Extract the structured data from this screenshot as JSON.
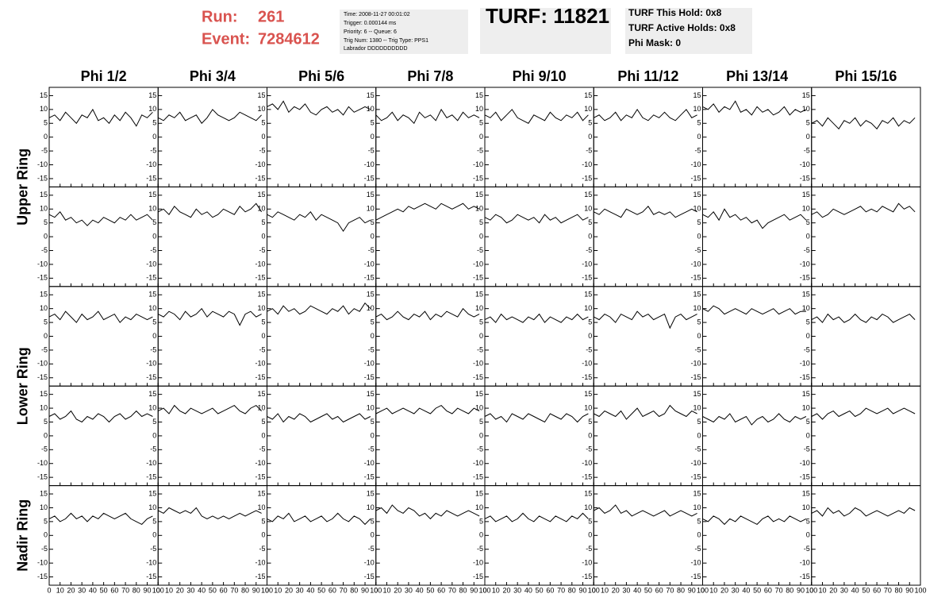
{
  "header": {
    "run_label": "Run:",
    "run": "261",
    "event_label": "Event:",
    "event": "7284612",
    "info": [
      "Time: 2008-11-27 00:01:02",
      "Trigger: 0.000144 ms",
      "Priority: 6 -- Queue: 6",
      "Trig Num: 1380 -- Trig Type: PPS1",
      "Labrador DDDDDDDDDD"
    ],
    "turf": "TURF: 11821",
    "turf_info": [
      "TURF This Hold: 0x8",
      "TURF Active Holds: 0x8",
      "Phi Mask: 0"
    ]
  },
  "chart_data": {
    "type": "line",
    "color": "#000000",
    "columns": [
      "Phi 1/2",
      "Phi 3/4",
      "Phi 5/6",
      "Phi 7/8",
      "Phi 9/10",
      "Phi 11/12",
      "Phi 13/14",
      "Phi 15/16"
    ],
    "row_groups": [
      "Upper Ring",
      "Lower Ring",
      "Nadir Ring"
    ],
    "xlim": [
      0,
      100
    ],
    "xticks": [
      0,
      10,
      20,
      30,
      40,
      50,
      60,
      70,
      80,
      90,
      100
    ],
    "ylim": [
      -18,
      18
    ],
    "yticks": [
      -15,
      -10,
      -5,
      0,
      5,
      10,
      15
    ],
    "x": [
      0,
      5,
      10,
      15,
      20,
      25,
      30,
      35,
      40,
      45,
      50,
      55,
      60,
      65,
      70,
      75,
      80,
      85,
      90,
      95
    ],
    "panels": [
      [
        [
          7,
          8,
          6,
          9,
          7,
          5,
          8,
          7,
          10,
          6,
          7,
          5,
          8,
          6,
          9,
          7,
          4,
          8,
          7,
          9
        ],
        [
          7,
          6,
          8,
          7,
          9,
          6,
          7,
          8,
          5,
          7,
          10,
          8,
          7,
          6,
          7,
          9,
          8,
          7,
          6,
          8
        ],
        [
          11,
          12,
          10,
          13,
          9,
          11,
          10,
          12,
          9,
          8,
          10,
          11,
          9,
          10,
          8,
          11,
          9,
          10,
          11,
          10
        ],
        [
          8,
          6,
          7,
          9,
          6,
          8,
          7,
          5,
          9,
          7,
          8,
          6,
          10,
          7,
          8,
          6,
          9,
          7,
          8,
          7
        ],
        [
          8,
          7,
          9,
          6,
          8,
          10,
          7,
          6,
          5,
          8,
          7,
          6,
          9,
          7,
          6,
          8,
          7,
          9,
          6,
          8
        ],
        [
          7,
          8,
          6,
          7,
          9,
          6,
          8,
          7,
          10,
          7,
          6,
          8,
          7,
          9,
          7,
          6,
          8,
          10,
          7,
          8
        ],
        [
          11,
          10,
          12,
          9,
          11,
          10,
          13,
          9,
          10,
          8,
          11,
          9,
          10,
          8,
          9,
          11,
          8,
          10,
          9,
          10
        ],
        [
          5,
          6,
          4,
          7,
          5,
          3,
          6,
          5,
          7,
          4,
          6,
          5,
          3,
          6,
          5,
          7,
          4,
          6,
          5,
          7
        ]
      ],
      [
        [
          8,
          7,
          9,
          6,
          7,
          5,
          6,
          4,
          6,
          5,
          7,
          6,
          5,
          7,
          6,
          8,
          6,
          7,
          8,
          6
        ],
        [
          9,
          10,
          8,
          11,
          9,
          8,
          7,
          10,
          8,
          9,
          7,
          8,
          10,
          9,
          8,
          11,
          9,
          10,
          12,
          9
        ],
        [
          8,
          7,
          9,
          8,
          7,
          6,
          8,
          7,
          9,
          6,
          8,
          7,
          6,
          5,
          2,
          5,
          6,
          7,
          5,
          6
        ],
        [
          6,
          7,
          8,
          9,
          10,
          9,
          11,
          10,
          11,
          12,
          11,
          10,
          12,
          11,
          10,
          11,
          12,
          10,
          11,
          10
        ],
        [
          7,
          6,
          8,
          7,
          5,
          6,
          8,
          7,
          6,
          7,
          5,
          8,
          6,
          7,
          5,
          6,
          7,
          8,
          6,
          7
        ],
        [
          9,
          8,
          10,
          9,
          8,
          7,
          10,
          9,
          8,
          9,
          11,
          8,
          9,
          8,
          9,
          7,
          8,
          9,
          10,
          9
        ],
        [
          8,
          7,
          9,
          6,
          10,
          7,
          8,
          6,
          7,
          5,
          6,
          3,
          5,
          6,
          7,
          8,
          6,
          7,
          8,
          6
        ],
        [
          8,
          9,
          7,
          8,
          10,
          9,
          8,
          9,
          10,
          11,
          9,
          10,
          9,
          11,
          10,
          9,
          12,
          10,
          11,
          9
        ]
      ],
      [
        [
          7,
          8,
          6,
          9,
          7,
          5,
          8,
          6,
          7,
          9,
          6,
          7,
          8,
          5,
          7,
          6,
          8,
          7,
          6,
          7
        ],
        [
          8,
          7,
          9,
          8,
          6,
          9,
          7,
          8,
          10,
          7,
          9,
          8,
          7,
          9,
          8,
          4,
          8,
          9,
          7,
          8
        ],
        [
          9,
          10,
          8,
          11,
          9,
          10,
          8,
          9,
          11,
          10,
          9,
          8,
          10,
          9,
          11,
          8,
          10,
          9,
          12,
          10
        ],
        [
          7,
          8,
          6,
          7,
          9,
          7,
          6,
          8,
          7,
          9,
          6,
          8,
          7,
          9,
          8,
          7,
          10,
          8,
          7,
          8
        ],
        [
          6,
          7,
          5,
          8,
          6,
          7,
          6,
          5,
          7,
          6,
          8,
          5,
          7,
          6,
          5,
          7,
          6,
          8,
          6,
          7
        ],
        [
          7,
          6,
          8,
          7,
          5,
          8,
          7,
          6,
          9,
          7,
          8,
          6,
          7,
          8,
          3,
          7,
          8,
          6,
          7,
          8
        ],
        [
          10,
          9,
          11,
          10,
          8,
          9,
          10,
          9,
          8,
          10,
          9,
          8,
          9,
          10,
          8,
          9,
          10,
          8,
          9,
          9
        ],
        [
          6,
          7,
          5,
          8,
          6,
          7,
          5,
          6,
          8,
          6,
          5,
          7,
          6,
          8,
          7,
          5,
          6,
          7,
          8,
          6
        ]
      ],
      [
        [
          7,
          8,
          6,
          7,
          9,
          6,
          5,
          7,
          6,
          8,
          7,
          5,
          7,
          8,
          6,
          7,
          9,
          7,
          8,
          7
        ],
        [
          9,
          10,
          8,
          11,
          9,
          8,
          10,
          9,
          8,
          9,
          10,
          8,
          9,
          10,
          11,
          9,
          8,
          10,
          11,
          9
        ],
        [
          7,
          6,
          8,
          5,
          7,
          6,
          8,
          7,
          5,
          6,
          7,
          8,
          6,
          7,
          5,
          6,
          7,
          8,
          6,
          7
        ],
        [
          8,
          9,
          10,
          8,
          9,
          10,
          9,
          8,
          10,
          9,
          8,
          10,
          11,
          9,
          8,
          10,
          9,
          8,
          10,
          9
        ],
        [
          7,
          8,
          6,
          7,
          5,
          8,
          7,
          6,
          8,
          7,
          6,
          5,
          8,
          7,
          6,
          8,
          7,
          5,
          7,
          8
        ],
        [
          8,
          7,
          9,
          8,
          7,
          9,
          6,
          8,
          10,
          7,
          8,
          9,
          7,
          8,
          11,
          9,
          8,
          7,
          9,
          8
        ],
        [
          7,
          6,
          5,
          7,
          6,
          8,
          5,
          6,
          7,
          4,
          6,
          7,
          5,
          6,
          8,
          6,
          5,
          7,
          6,
          7
        ],
        [
          7,
          8,
          6,
          8,
          9,
          7,
          8,
          9,
          7,
          8,
          10,
          9,
          8,
          9,
          10,
          8,
          9,
          10,
          9,
          8
        ]
      ],
      [
        [
          6,
          7,
          5,
          6,
          8,
          6,
          7,
          5,
          7,
          6,
          8,
          7,
          6,
          7,
          8,
          6,
          5,
          4,
          6,
          7
        ],
        [
          9,
          8,
          10,
          9,
          8,
          9,
          8,
          10,
          7,
          6,
          7,
          6,
          7,
          6,
          7,
          8,
          7,
          8,
          9,
          8
        ],
        [
          6,
          5,
          7,
          6,
          8,
          5,
          6,
          7,
          5,
          6,
          7,
          5,
          6,
          8,
          6,
          5,
          7,
          6,
          4,
          6
        ],
        [
          9,
          10,
          8,
          11,
          9,
          8,
          10,
          9,
          7,
          8,
          6,
          8,
          7,
          9,
          8,
          7,
          8,
          9,
          8,
          7
        ],
        [
          6,
          7,
          5,
          6,
          7,
          5,
          6,
          8,
          6,
          5,
          7,
          6,
          5,
          7,
          6,
          5,
          7,
          6,
          8,
          6
        ],
        [
          9,
          10,
          8,
          9,
          11,
          8,
          9,
          7,
          8,
          9,
          8,
          7,
          8,
          9,
          7,
          8,
          9,
          8,
          7,
          8
        ],
        [
          6,
          5,
          7,
          6,
          4,
          6,
          5,
          7,
          6,
          5,
          4,
          6,
          7,
          5,
          6,
          5,
          7,
          6,
          5,
          6
        ],
        [
          8,
          9,
          7,
          10,
          8,
          9,
          7,
          8,
          10,
          9,
          7,
          8,
          9,
          8,
          7,
          8,
          9,
          8,
          10,
          9
        ]
      ]
    ]
  }
}
